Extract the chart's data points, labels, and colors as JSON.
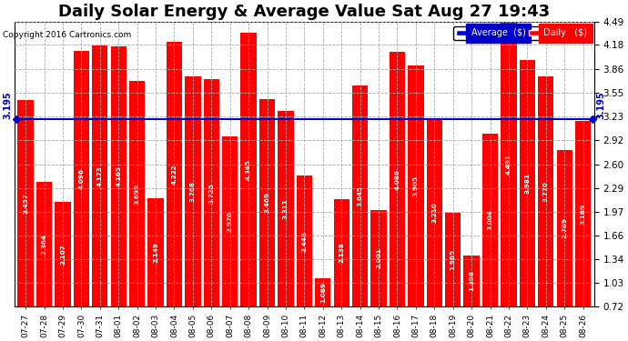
{
  "title": "Daily Solar Energy & Average Value Sat Aug 27 19:43",
  "copyright": "Copyright 2016 Cartronics.com",
  "categories": [
    "07-27",
    "07-28",
    "07-29",
    "07-30",
    "07-31",
    "08-01",
    "08-02",
    "08-03",
    "08-04",
    "08-05",
    "08-06",
    "08-07",
    "08-08",
    "08-09",
    "08-10",
    "08-11",
    "08-12",
    "08-13",
    "08-14",
    "08-15",
    "08-16",
    "08-17",
    "08-18",
    "08-19",
    "08-20",
    "08-21",
    "08-22",
    "08-23",
    "08-24",
    "08-25",
    "08-26"
  ],
  "values": [
    3.457,
    2.364,
    2.107,
    4.096,
    4.173,
    4.165,
    3.699,
    2.149,
    4.222,
    3.768,
    3.725,
    2.976,
    4.345,
    3.469,
    3.311,
    2.448,
    1.089,
    2.138,
    3.645,
    2.001,
    4.086,
    3.905,
    3.21,
    1.965,
    1.398,
    3.004,
    4.491,
    3.981,
    3.77,
    2.789,
    3.169
  ],
  "average": 3.195,
  "bar_color": "#ff0000",
  "average_line_color": "#0000cc",
  "background_color": "#ffffff",
  "plot_background": "#ffffff",
  "grid_color": "#aaaaaa",
  "yticks": [
    0.72,
    1.03,
    1.34,
    1.66,
    1.97,
    2.29,
    2.6,
    2.92,
    3.23,
    3.55,
    3.86,
    4.18,
    4.49
  ],
  "ylim_min": 0.72,
  "ylim_max": 4.49,
  "title_fontsize": 13,
  "legend_avg_color": "#0000cc",
  "legend_daily_color": "#ff0000"
}
